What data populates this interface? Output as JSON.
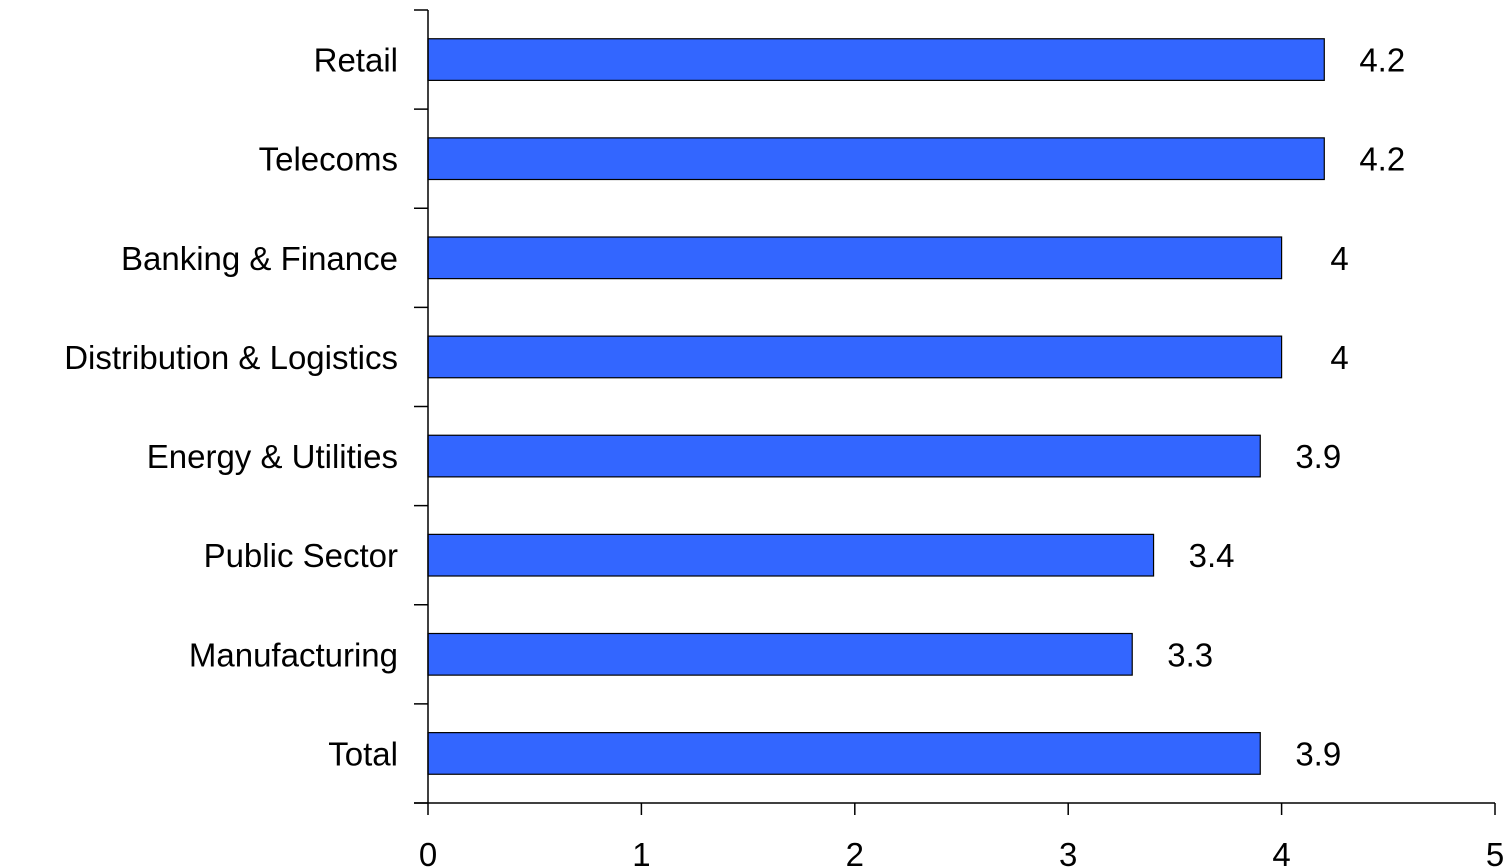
{
  "chart_data": {
    "type": "bar",
    "orientation": "horizontal",
    "title": "",
    "xlabel": "",
    "ylabel": "",
    "categories": [
      "Retail",
      "Telecoms",
      "Banking & Finance",
      "Distribution & Logistics",
      "Energy & Utilities",
      "Public Sector",
      "Manufacturing",
      "Total"
    ],
    "values": [
      4.2,
      4.2,
      4,
      4,
      3.9,
      3.4,
      3.3,
      3.9
    ],
    "value_labels": [
      "4.2",
      "4.2",
      "4",
      "4",
      "3.9",
      "3.4",
      "3.3",
      "3.9"
    ],
    "xlim": [
      0,
      5
    ],
    "xticks": [
      "0",
      "1",
      "2",
      "3",
      "4",
      "5"
    ],
    "grid": false,
    "legend": "none",
    "bar_color": "#3366FF"
  }
}
